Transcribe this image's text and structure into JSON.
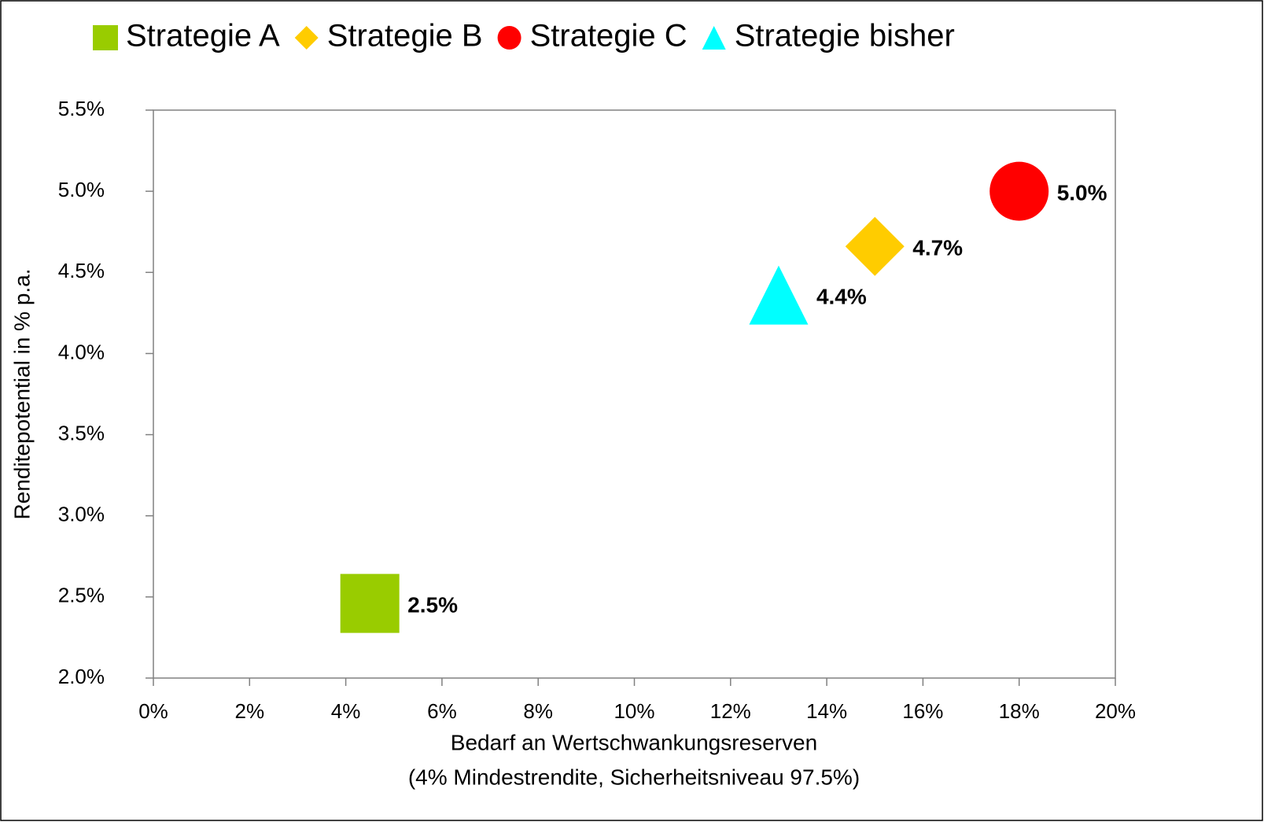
{
  "chart_data": {
    "type": "scatter",
    "x_label": [
      "Bedarf an Wertschwankungsreserven",
      "(4% Mindestrendite, Sicherheitsniveau 97.5%)"
    ],
    "y_label": "Renditepotential in % p.a.",
    "series": [
      {
        "name": "Strategie A",
        "color": "#99cc00",
        "marker": "square",
        "x": [
          4.5
        ],
        "values": [
          2.46
        ],
        "value_labels": [
          "2.5%"
        ]
      },
      {
        "name": "Strategie B",
        "color": "#ffcc00",
        "marker": "diamond",
        "x": [
          15
        ],
        "values": [
          4.66
        ],
        "value_labels": [
          "4.7%"
        ]
      },
      {
        "name": "Strategie C",
        "color": "#ff0000",
        "marker": "circle",
        "x": [
          18
        ],
        "values": [
          5.0
        ],
        "value_labels": [
          "5.0%"
        ]
      },
      {
        "name": "Strategie bisher",
        "color": "#00ffff",
        "marker": "triangle",
        "x": [
          13
        ],
        "values": [
          4.36
        ],
        "value_labels": [
          "4.4%"
        ]
      }
    ],
    "xlim": [
      0,
      20
    ],
    "xticks": [
      {
        "value": 0,
        "label": "0%"
      },
      {
        "value": 2,
        "label": "2%"
      },
      {
        "value": 4,
        "label": "4%"
      },
      {
        "value": 6,
        "label": "6%"
      },
      {
        "value": 8,
        "label": "8%"
      },
      {
        "value": 10,
        "label": "10%"
      },
      {
        "value": 12,
        "label": "12%"
      },
      {
        "value": 14,
        "label": "14%"
      },
      {
        "value": 16,
        "label": "16%"
      },
      {
        "value": 18,
        "label": "18%"
      },
      {
        "value": 20,
        "label": "20%"
      }
    ],
    "ylim": [
      2.0,
      5.5
    ],
    "yticks": [
      {
        "value": 2.0,
        "label": "2.0%"
      },
      {
        "value": 2.5,
        "label": "2.5%"
      },
      {
        "value": 3.0,
        "label": "3.0%"
      },
      {
        "value": 3.5,
        "label": "3.5%"
      },
      {
        "value": 4.0,
        "label": "4.0%"
      },
      {
        "value": 4.5,
        "label": "4.5%"
      },
      {
        "value": 5.0,
        "label": "5.0%"
      },
      {
        "value": 5.5,
        "label": "5.5%"
      }
    ],
    "grid": false,
    "legend": "top"
  }
}
